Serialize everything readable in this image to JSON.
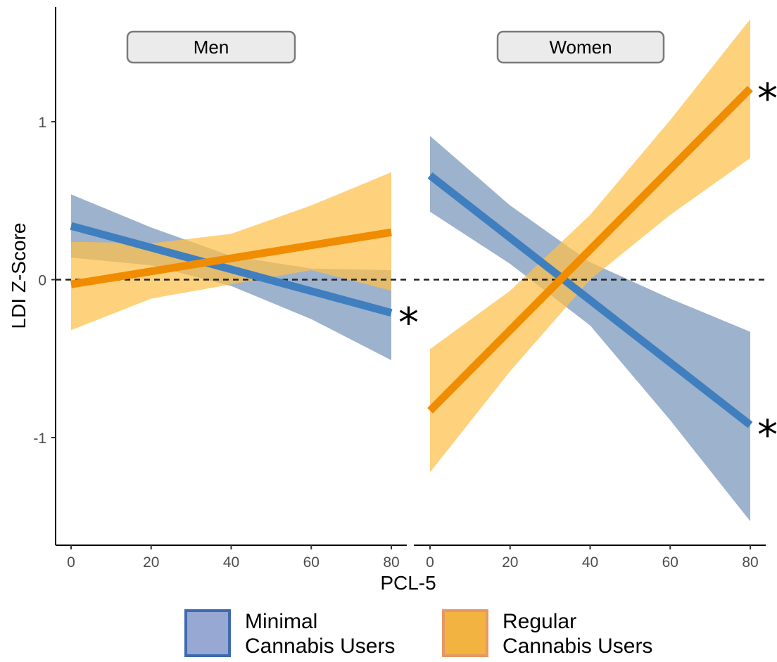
{
  "chart_data": {
    "type": "line",
    "xlabel": "PCL-5",
    "ylabel": "LDI Z-Score",
    "xlim": [
      0,
      80
    ],
    "ylim": [
      -1.5,
      1.65
    ],
    "x_ticks": [
      0,
      20,
      40,
      60,
      80
    ],
    "y_ticks": [
      -1,
      0,
      1
    ],
    "reference_line": {
      "y": 0,
      "style": "dashed"
    },
    "grid": false,
    "legend_position": "bottom",
    "series_colors": {
      "minimal": "#3f7fbf",
      "regular": "#f08c00",
      "minimal_band": "#7c98bc",
      "regular_band": "#fdbf4a"
    },
    "panels": [
      {
        "label": "Men",
        "series": [
          {
            "key": "minimal",
            "x": [
              0,
              80
            ],
            "y": [
              0.34,
              -0.21
            ],
            "band_x": [
              0,
              20,
              40,
              60,
              80
            ],
            "band_lower": [
              0.14,
              0.09,
              -0.04,
              -0.25,
              -0.51
            ],
            "band_upper": [
              0.54,
              0.33,
              0.15,
              0.07,
              0.06
            ],
            "marker": "*"
          },
          {
            "key": "regular",
            "x": [
              0,
              80
            ],
            "y": [
              -0.03,
              0.3
            ],
            "band_x": [
              0,
              20,
              40,
              60,
              80
            ],
            "band_lower": [
              -0.32,
              -0.12,
              -0.03,
              0.06,
              -0.07
            ],
            "band_upper": [
              0.24,
              0.23,
              0.29,
              0.47,
              0.68
            ],
            "marker": ""
          }
        ]
      },
      {
        "label": "Women",
        "series": [
          {
            "key": "minimal",
            "x": [
              0,
              80
            ],
            "y": [
              0.66,
              -0.92
            ],
            "band_x": [
              0,
              20,
              40,
              60,
              80
            ],
            "band_lower": [
              0.43,
              0.1,
              -0.29,
              -0.89,
              -1.53
            ],
            "band_upper": [
              0.91,
              0.47,
              0.11,
              -0.12,
              -0.33
            ],
            "marker": "*"
          },
          {
            "key": "regular",
            "x": [
              0,
              80
            ],
            "y": [
              -0.83,
              1.21
            ],
            "band_x": [
              0,
              20,
              40,
              60,
              80
            ],
            "band_lower": [
              -1.22,
              -0.58,
              0.0,
              0.41,
              0.77
            ],
            "band_upper": [
              -0.44,
              -0.07,
              0.41,
              1.01,
              1.65
            ],
            "marker": "*"
          }
        ]
      }
    ],
    "legend": [
      {
        "key": "minimal",
        "line1": "Minimal",
        "line2": "Cannabis Users",
        "fill": "#97a8d2",
        "border": "#3f6ab0"
      },
      {
        "key": "regular",
        "line1": "Regular",
        "line2": "Cannabis Users",
        "fill": "#f2b341",
        "border": "#e69964"
      }
    ]
  }
}
